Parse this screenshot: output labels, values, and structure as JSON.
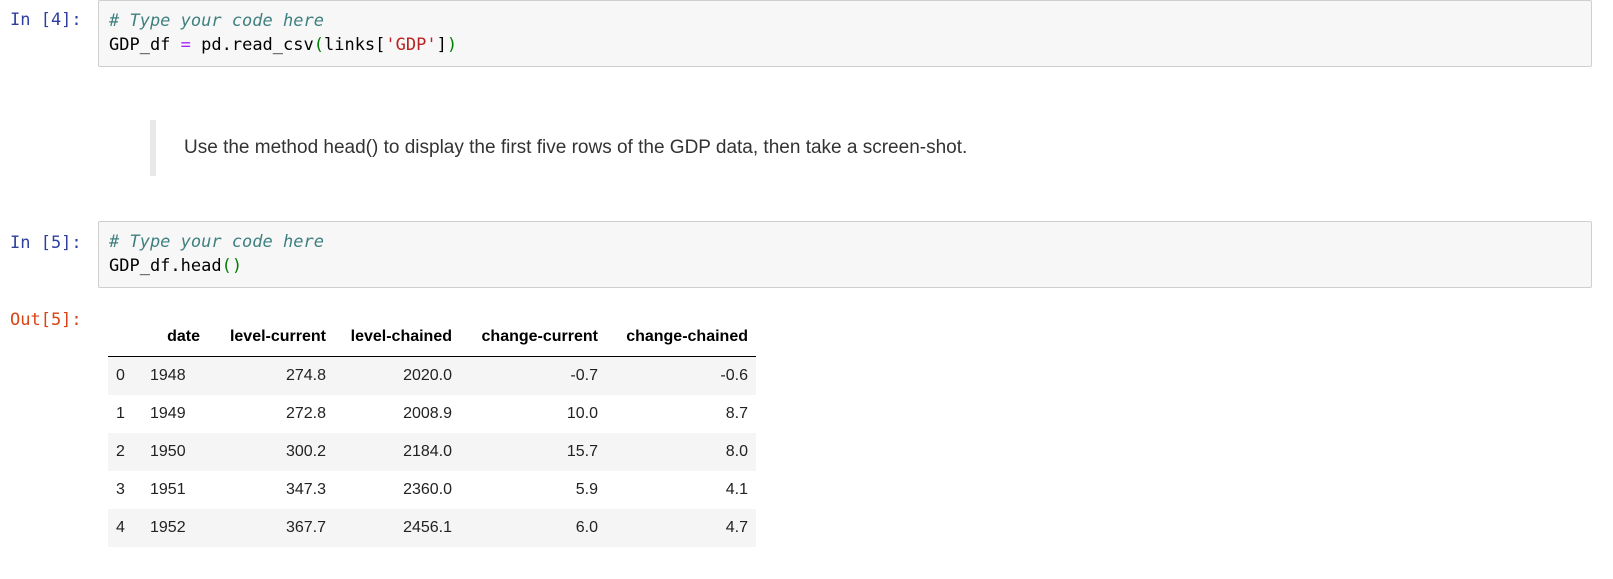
{
  "cells": {
    "cell4": {
      "prompt": "In [4]:",
      "comment": "# Type your code here",
      "line2": {
        "var": "GDP_df ",
        "op": "=",
        "mid": " pd.read_csv",
        "open_paren": "(",
        "arg_start": "links[",
        "str": "'GDP'",
        "arg_end": "]",
        "close_paren": ")"
      }
    },
    "markdown": {
      "text": "Use the method head() to display the first five rows of the GDP data, then take a screen-shot."
    },
    "cell5": {
      "prompt": "In [5]:",
      "comment": "# Type your code here",
      "line2": {
        "code": "GDP_df.head",
        "open_paren": "(",
        "close_paren": ")"
      },
      "out_prompt": "Out[5]:"
    }
  },
  "dataframe": {
    "columns": [
      "",
      "date",
      "level-current",
      "level-chained",
      "change-current",
      "change-chained"
    ],
    "rows": [
      [
        "0",
        "1948",
        "274.8",
        "2020.0",
        "-0.7",
        "-0.6"
      ],
      [
        "1",
        "1949",
        "272.8",
        "2008.9",
        "10.0",
        "8.7"
      ],
      [
        "2",
        "1950",
        "300.2",
        "2184.0",
        "15.7",
        "8.0"
      ],
      [
        "3",
        "1951",
        "347.3",
        "2360.0",
        "5.9",
        "4.1"
      ],
      [
        "4",
        "1952",
        "367.7",
        "2456.1",
        "6.0",
        "4.7"
      ]
    ]
  }
}
